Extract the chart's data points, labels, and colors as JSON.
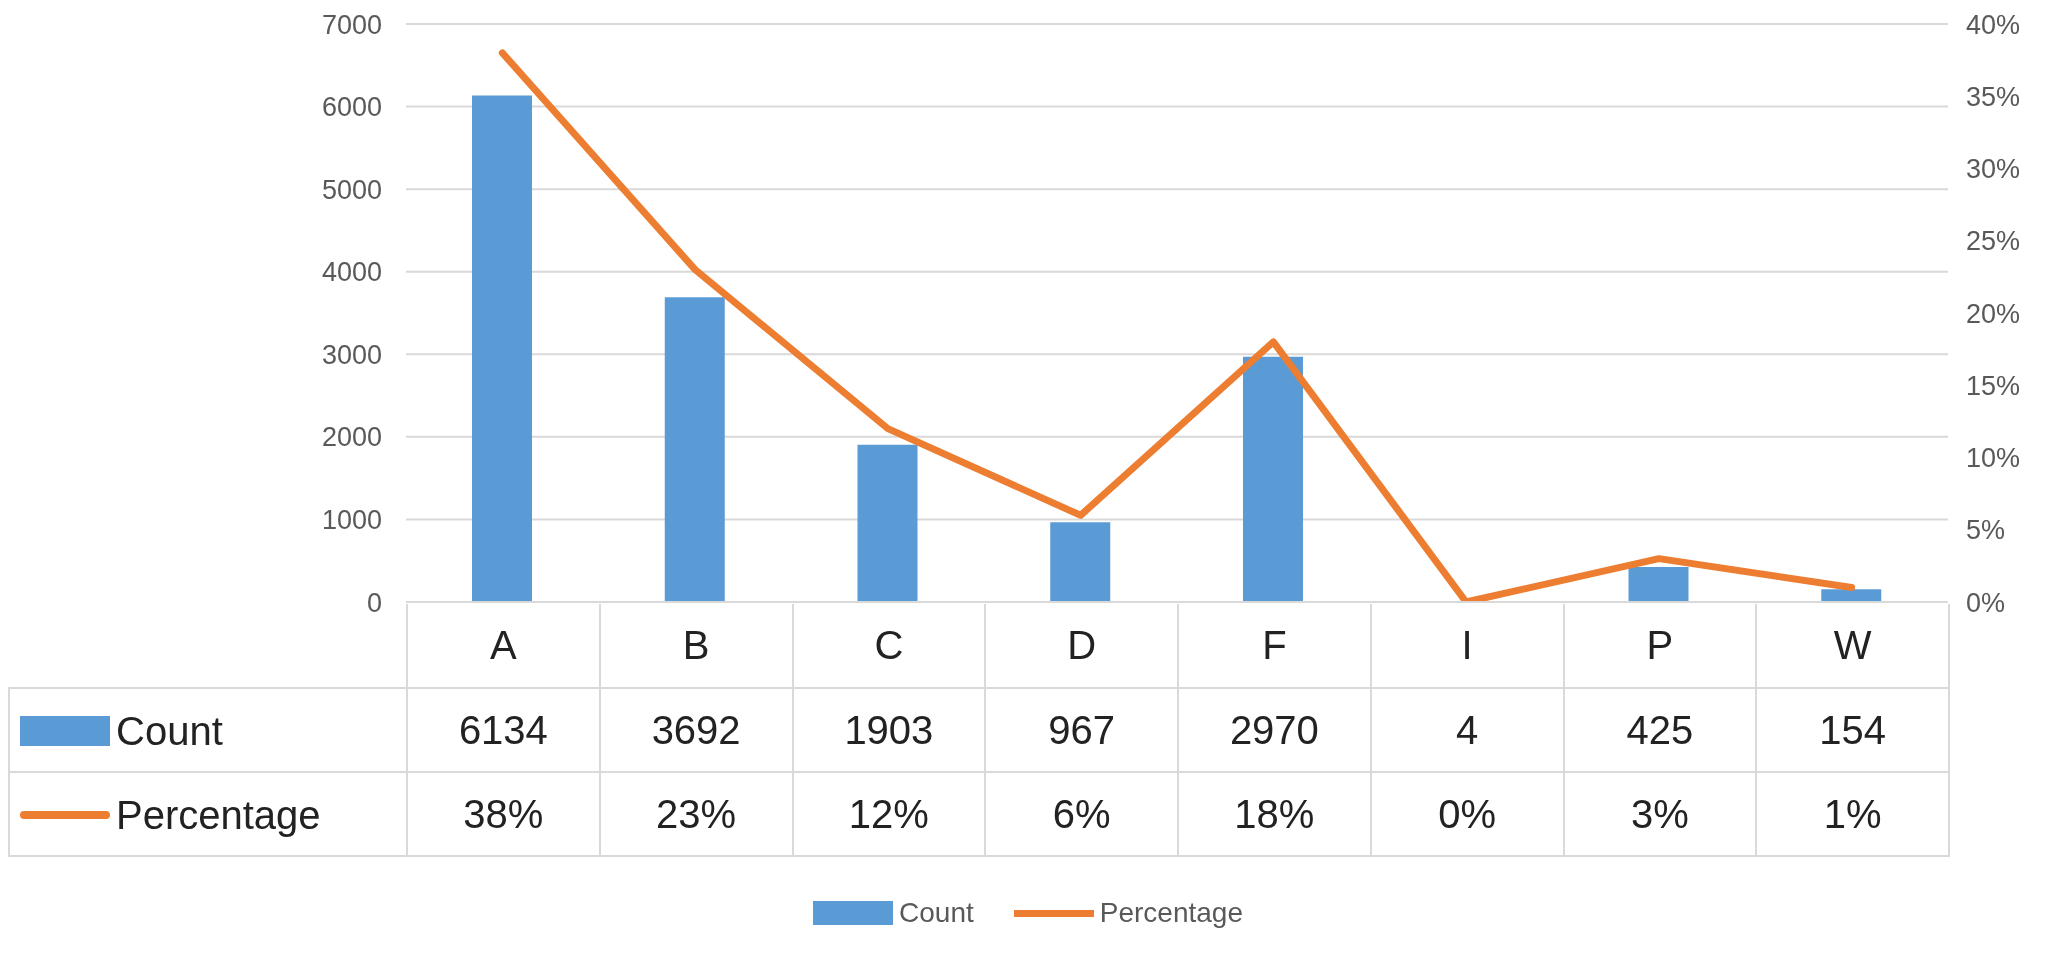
{
  "chart_data": {
    "type": "bar",
    "categories": [
      "A",
      "B",
      "C",
      "D",
      "F",
      "I",
      "P",
      "W"
    ],
    "series": [
      {
        "name": "Count",
        "color": "#5b9bd5",
        "values": [
          6134,
          3692,
          1903,
          967,
          2970,
          4,
          425,
          154
        ],
        "value_labels": [
          "6134",
          "3692",
          "1903",
          "967",
          "2970",
          "4",
          "425",
          "154"
        ]
      },
      {
        "name": "Percentage",
        "type": "line",
        "axis": "y2",
        "color": "#ed7d31",
        "values": [
          38,
          23,
          12,
          6,
          18,
          0,
          3,
          1
        ],
        "value_labels": [
          "38%",
          "23%",
          "12%",
          "6%",
          "18%",
          "0%",
          "3%",
          "1%"
        ]
      }
    ],
    "ylim": [
      0,
      7000
    ],
    "yticks": [
      0,
      1000,
      2000,
      3000,
      4000,
      5000,
      6000,
      7000
    ],
    "y2lim": [
      0,
      40
    ],
    "y2ticks": [
      {
        "value": 0,
        "label": "0%"
      },
      {
        "value": 5,
        "label": "5%"
      },
      {
        "value": 10,
        "label": "10%"
      },
      {
        "value": 15,
        "label": "15%"
      },
      {
        "value": 20,
        "label": "20%"
      },
      {
        "value": 25,
        "label": "25%"
      },
      {
        "value": 30,
        "label": "30%"
      },
      {
        "value": 35,
        "label": "35%"
      },
      {
        "value": 40,
        "label": "40%"
      }
    ],
    "grid": "y",
    "legend": "bottom"
  }
}
